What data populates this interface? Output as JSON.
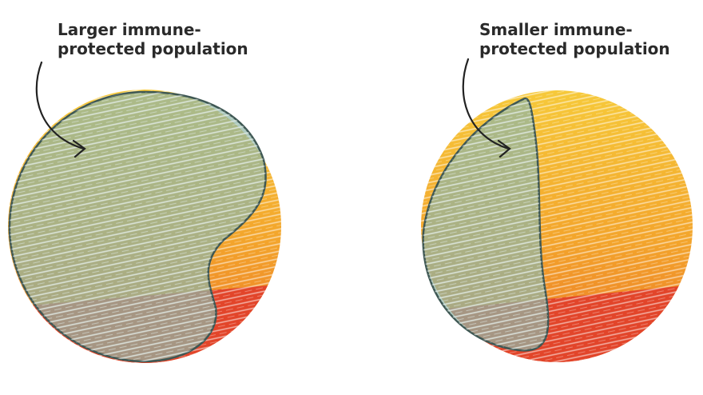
{
  "labels": [
    {
      "lines": [
        "Larger immune-",
        "protected population"
      ]
    },
    {
      "lines": [
        "Smaller immune-",
        "protected population"
      ]
    }
  ]
}
